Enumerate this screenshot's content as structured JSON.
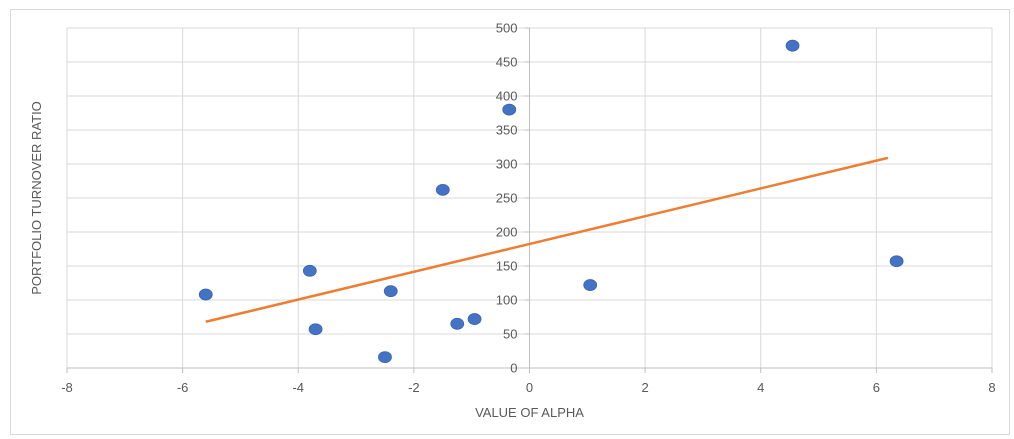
{
  "chart_data": {
    "type": "scatter",
    "title": "",
    "xlabel": "VALUE OF ALPHA",
    "ylabel": "PORTFOLIO TURNOVER RATIO",
    "xlim": [
      -8,
      8
    ],
    "ylim": [
      0,
      500
    ],
    "x_ticks": [
      -8,
      -6,
      -4,
      -2,
      0,
      2,
      4,
      6,
      8
    ],
    "y_ticks": [
      0,
      50,
      100,
      150,
      200,
      250,
      300,
      350,
      400,
      450,
      500
    ],
    "grid": true,
    "legend": "none",
    "point_color": "#4472c4",
    "trendline_color": "#ed7d31",
    "series": [
      {
        "points": [
          {
            "x": -5.6,
            "y": 108
          },
          {
            "x": -3.8,
            "y": 143
          },
          {
            "x": -3.7,
            "y": 57
          },
          {
            "x": -2.5,
            "y": 16
          },
          {
            "x": -2.4,
            "y": 113
          },
          {
            "x": -1.5,
            "y": 262
          },
          {
            "x": -1.25,
            "y": 65
          },
          {
            "x": -0.95,
            "y": 72
          },
          {
            "x": -0.35,
            "y": 380
          },
          {
            "x": 1.05,
            "y": 122
          },
          {
            "x": 4.55,
            "y": 474
          },
          {
            "x": 6.35,
            "y": 157
          }
        ]
      }
    ],
    "trendline": {
      "type": "linear",
      "start": {
        "x": -5.6,
        "y": 68
      },
      "end": {
        "x": 6.2,
        "y": 309
      }
    }
  }
}
